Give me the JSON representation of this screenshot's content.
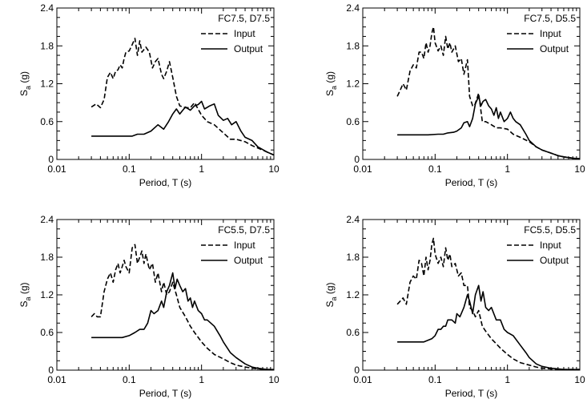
{
  "chart_data": [
    {
      "type": "line",
      "title": "FC7.5, D7.5",
      "xlabel": "Period, T (s)",
      "ylabel": "Sa (g)",
      "ylabel_main": "S",
      "ylabel_sub": "a",
      "ylabel_rest": " (g)",
      "x_scale": "log",
      "xlim": [
        0.01,
        10
      ],
      "ylim": [
        0,
        2.4
      ],
      "xticks": [
        "0.01",
        "0.1",
        "1",
        "10"
      ],
      "yticks": [
        "0",
        "0.6",
        "1.2",
        "1.8",
        "2.4"
      ],
      "grid": false,
      "legend_position": "top-right",
      "series": [
        {
          "name": "Input",
          "style": "dashed",
          "x": [
            0.03,
            0.035,
            0.04,
            0.045,
            0.05,
            0.055,
            0.06,
            0.065,
            0.07,
            0.075,
            0.08,
            0.085,
            0.09,
            0.1,
            0.11,
            0.12,
            0.13,
            0.14,
            0.15,
            0.17,
            0.19,
            0.21,
            0.23,
            0.25,
            0.28,
            0.3,
            0.33,
            0.36,
            0.4,
            0.45,
            0.5,
            0.6,
            0.7,
            0.8,
            1.0,
            1.2,
            1.5,
            2.0,
            2.5,
            3.0,
            4.0,
            5.0,
            6.0,
            8.0,
            10.0
          ],
          "y": [
            0.83,
            0.88,
            0.82,
            0.95,
            1.3,
            1.38,
            1.28,
            1.4,
            1.42,
            1.5,
            1.45,
            1.6,
            1.7,
            1.72,
            1.82,
            1.92,
            1.65,
            1.88,
            1.7,
            1.78,
            1.7,
            1.45,
            1.55,
            1.6,
            1.35,
            1.28,
            1.4,
            1.55,
            1.3,
            1.0,
            0.85,
            0.82,
            0.82,
            0.9,
            0.7,
            0.6,
            0.55,
            0.42,
            0.32,
            0.32,
            0.28,
            0.22,
            0.18,
            0.12,
            0.07
          ]
        },
        {
          "name": "Output",
          "style": "solid",
          "x": [
            0.03,
            0.05,
            0.08,
            0.11,
            0.13,
            0.16,
            0.2,
            0.25,
            0.3,
            0.35,
            0.4,
            0.45,
            0.5,
            0.55,
            0.6,
            0.7,
            0.8,
            0.9,
            1.0,
            1.1,
            1.3,
            1.5,
            1.7,
            2.0,
            2.3,
            2.6,
            3.0,
            3.5,
            4.0,
            5.0,
            6.0,
            8.0,
            10.0
          ],
          "y": [
            0.37,
            0.37,
            0.37,
            0.37,
            0.4,
            0.4,
            0.45,
            0.55,
            0.48,
            0.6,
            0.72,
            0.8,
            0.72,
            0.78,
            0.83,
            0.78,
            0.85,
            0.87,
            0.92,
            0.8,
            0.85,
            0.88,
            0.7,
            0.62,
            0.65,
            0.55,
            0.6,
            0.45,
            0.35,
            0.3,
            0.2,
            0.12,
            0.07
          ]
        }
      ]
    },
    {
      "type": "line",
      "title": "FC7.5, D5.5",
      "xlabel": "Period, T (s)",
      "ylabel": "Sa (g)",
      "ylabel_main": "S",
      "ylabel_sub": "a",
      "ylabel_rest": " (g)",
      "x_scale": "log",
      "xlim": [
        0.01,
        10
      ],
      "ylim": [
        0,
        2.4
      ],
      "xticks": [
        "0.01",
        "0.1",
        "1",
        "10"
      ],
      "yticks": [
        "0",
        "0.6",
        "1.2",
        "1.8",
        "2.4"
      ],
      "grid": false,
      "legend_position": "top-right",
      "series": [
        {
          "name": "Input",
          "style": "dashed",
          "x": [
            0.03,
            0.033,
            0.036,
            0.04,
            0.045,
            0.05,
            0.055,
            0.06,
            0.065,
            0.07,
            0.075,
            0.08,
            0.085,
            0.09,
            0.095,
            0.1,
            0.11,
            0.12,
            0.13,
            0.14,
            0.15,
            0.16,
            0.17,
            0.19,
            0.21,
            0.23,
            0.25,
            0.28,
            0.3,
            0.33,
            0.35,
            0.4,
            0.45,
            0.5,
            0.6,
            0.7,
            0.8,
            1.0,
            1.2,
            1.5,
            2.0,
            2.5,
            3.0,
            4.0,
            5.0,
            6.0,
            8.0,
            10.0
          ],
          "y": [
            1.0,
            1.1,
            1.2,
            1.1,
            1.4,
            1.5,
            1.45,
            1.7,
            1.7,
            1.6,
            1.85,
            1.7,
            1.8,
            2.0,
            2.1,
            1.85,
            1.72,
            1.8,
            1.65,
            1.95,
            1.75,
            1.85,
            1.7,
            1.8,
            1.55,
            1.6,
            1.35,
            1.58,
            1.0,
            0.85,
            0.85,
            1.05,
            0.6,
            0.6,
            0.55,
            0.5,
            0.5,
            0.48,
            0.4,
            0.35,
            0.28,
            0.2,
            0.15,
            0.1,
            0.06,
            0.04,
            0.02,
            0.01
          ]
        },
        {
          "name": "Output",
          "style": "solid",
          "x": [
            0.03,
            0.05,
            0.08,
            0.11,
            0.13,
            0.15,
            0.18,
            0.2,
            0.23,
            0.25,
            0.28,
            0.3,
            0.33,
            0.36,
            0.4,
            0.43,
            0.46,
            0.5,
            0.55,
            0.6,
            0.65,
            0.7,
            0.75,
            0.8,
            0.9,
            1.0,
            1.1,
            1.2,
            1.3,
            1.5,
            1.8,
            2.0,
            2.5,
            3.0,
            4.0,
            5.0,
            6.0,
            8.0,
            10.0
          ],
          "y": [
            0.39,
            0.39,
            0.39,
            0.4,
            0.4,
            0.42,
            0.43,
            0.45,
            0.5,
            0.58,
            0.6,
            0.52,
            0.65,
            0.88,
            1.0,
            0.85,
            0.92,
            0.95,
            0.85,
            0.8,
            0.7,
            0.82,
            0.65,
            0.75,
            0.6,
            0.65,
            0.75,
            0.65,
            0.6,
            0.55,
            0.4,
            0.3,
            0.2,
            0.15,
            0.1,
            0.06,
            0.04,
            0.02,
            0.01
          ]
        }
      ]
    },
    {
      "type": "line",
      "title": "FC5.5, D7.5",
      "xlabel": "Period, T (s)",
      "ylabel": "Sa (g)",
      "ylabel_main": "S",
      "ylabel_sub": "a",
      "ylabel_rest": " (g)",
      "x_scale": "log",
      "xlim": [
        0.01,
        10
      ],
      "ylim": [
        0,
        2.4
      ],
      "xticks": [
        "0.01",
        "0.1",
        "1",
        "10"
      ],
      "yticks": [
        "0",
        "0.6",
        "1.2",
        "1.8",
        "2.4"
      ],
      "grid": false,
      "legend_position": "top-right",
      "series": [
        {
          "name": "Input",
          "style": "dashed",
          "x": [
            0.03,
            0.033,
            0.036,
            0.04,
            0.045,
            0.05,
            0.055,
            0.06,
            0.065,
            0.07,
            0.075,
            0.08,
            0.085,
            0.09,
            0.1,
            0.11,
            0.12,
            0.13,
            0.14,
            0.15,
            0.16,
            0.17,
            0.19,
            0.21,
            0.23,
            0.25,
            0.28,
            0.3,
            0.33,
            0.36,
            0.4,
            0.45,
            0.5,
            0.6,
            0.7,
            0.8,
            1.0,
            1.2,
            1.5,
            2.0,
            2.5,
            3.0,
            4.0,
            5.0,
            6.0,
            8.0,
            10.0
          ],
          "y": [
            0.85,
            0.9,
            0.85,
            0.85,
            1.25,
            1.45,
            1.55,
            1.4,
            1.6,
            1.7,
            1.55,
            1.65,
            1.75,
            1.65,
            1.55,
            1.95,
            2.0,
            1.7,
            1.8,
            1.9,
            1.7,
            1.85,
            1.6,
            1.7,
            1.4,
            1.55,
            1.25,
            1.4,
            1.2,
            1.25,
            1.4,
            1.2,
            1.0,
            0.85,
            0.7,
            0.6,
            0.45,
            0.35,
            0.25,
            0.18,
            0.12,
            0.08,
            0.05,
            0.03,
            0.02,
            0.01,
            0.01
          ]
        },
        {
          "name": "Output",
          "style": "solid",
          "x": [
            0.03,
            0.05,
            0.08,
            0.1,
            0.12,
            0.14,
            0.16,
            0.18,
            0.2,
            0.22,
            0.25,
            0.28,
            0.3,
            0.33,
            0.36,
            0.4,
            0.43,
            0.46,
            0.5,
            0.55,
            0.6,
            0.65,
            0.7,
            0.75,
            0.8,
            0.9,
            1.0,
            1.1,
            1.2,
            1.5,
            1.8,
            2.0,
            2.5,
            3.0,
            4.0,
            5.0,
            6.0,
            8.0,
            10.0
          ],
          "y": [
            0.52,
            0.52,
            0.52,
            0.55,
            0.6,
            0.65,
            0.65,
            0.75,
            0.95,
            0.9,
            0.95,
            1.1,
            1.0,
            1.25,
            1.35,
            1.55,
            1.3,
            1.45,
            1.35,
            1.25,
            1.3,
            1.1,
            1.15,
            1.0,
            1.1,
            0.95,
            0.9,
            0.8,
            0.8,
            0.7,
            0.55,
            0.45,
            0.28,
            0.2,
            0.1,
            0.05,
            0.03,
            0.01,
            0.01
          ]
        }
      ]
    },
    {
      "type": "line",
      "title": "FC5.5, D5.5",
      "xlabel": "Period, T (s)",
      "ylabel": "Sa (g)",
      "ylabel_main": "S",
      "ylabel_sub": "a",
      "ylabel_rest": " (g)",
      "x_scale": "log",
      "xlim": [
        0.01,
        10
      ],
      "ylim": [
        0,
        2.4
      ],
      "xticks": [
        "0.01",
        "0.1",
        "1",
        "10"
      ],
      "yticks": [
        "0",
        "0.6",
        "1.2",
        "1.8",
        "2.4"
      ],
      "grid": false,
      "legend_position": "top-right",
      "series": [
        {
          "name": "Input",
          "style": "dashed",
          "x": [
            0.03,
            0.033,
            0.036,
            0.04,
            0.045,
            0.05,
            0.055,
            0.06,
            0.065,
            0.07,
            0.075,
            0.08,
            0.085,
            0.09,
            0.095,
            0.1,
            0.11,
            0.12,
            0.13,
            0.14,
            0.15,
            0.16,
            0.17,
            0.19,
            0.21,
            0.23,
            0.25,
            0.28,
            0.3,
            0.33,
            0.36,
            0.4,
            0.45,
            0.5,
            0.6,
            0.7,
            0.8,
            1.0,
            1.2,
            1.5,
            2.0,
            2.5,
            3.0,
            4.0,
            5.0,
            6.0,
            8.0,
            10.0
          ],
          "y": [
            1.05,
            1.1,
            1.15,
            1.05,
            1.4,
            1.5,
            1.45,
            1.75,
            1.7,
            1.5,
            1.8,
            1.6,
            1.75,
            2.0,
            2.1,
            1.85,
            1.7,
            1.8,
            1.65,
            1.95,
            1.75,
            1.85,
            1.65,
            1.7,
            1.5,
            1.55,
            1.35,
            1.35,
            1.0,
            0.95,
            0.85,
            0.95,
            0.7,
            0.62,
            0.5,
            0.42,
            0.35,
            0.25,
            0.18,
            0.12,
            0.08,
            0.05,
            0.03,
            0.02,
            0.01,
            0.01,
            0.01,
            0.01
          ]
        },
        {
          "name": "Output",
          "style": "solid",
          "x": [
            0.03,
            0.05,
            0.07,
            0.09,
            0.1,
            0.11,
            0.12,
            0.13,
            0.14,
            0.15,
            0.17,
            0.19,
            0.2,
            0.22,
            0.25,
            0.28,
            0.3,
            0.33,
            0.36,
            0.4,
            0.43,
            0.46,
            0.5,
            0.55,
            0.6,
            0.7,
            0.8,
            0.9,
            1.0,
            1.2,
            1.5,
            1.8,
            2.0,
            2.5,
            3.0,
            4.0,
            5.0,
            6.0,
            8.0,
            10.0
          ],
          "y": [
            0.45,
            0.45,
            0.45,
            0.5,
            0.55,
            0.65,
            0.65,
            0.7,
            0.7,
            0.8,
            0.8,
            0.75,
            0.9,
            0.85,
            1.0,
            1.2,
            1.1,
            0.9,
            1.2,
            1.35,
            1.1,
            1.25,
            1.0,
            0.95,
            1.0,
            0.8,
            0.8,
            0.65,
            0.6,
            0.55,
            0.4,
            0.28,
            0.2,
            0.1,
            0.06,
            0.03,
            0.02,
            0.01,
            0.01,
            0.01
          ]
        }
      ]
    }
  ]
}
